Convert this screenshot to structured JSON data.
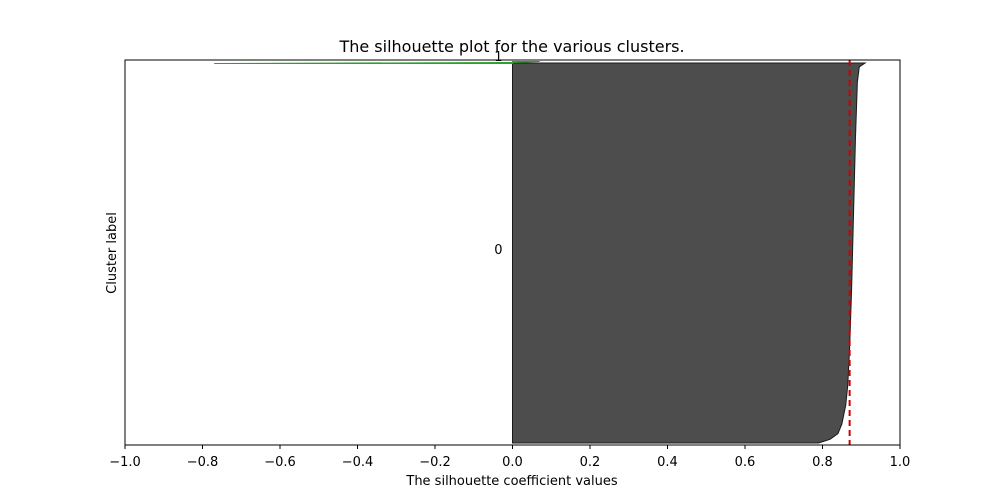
{
  "chart_data": {
    "type": "area",
    "title": "The silhouette plot for the various clusters.",
    "xlabel": "The silhouette coefficient values",
    "ylabel": "Cluster label",
    "xlim": [
      -1.0,
      1.0
    ],
    "xticks": [
      "−1.0",
      "−0.8",
      "−0.6",
      "−0.4",
      "−0.2",
      "0.0",
      "0.2",
      "0.4",
      "0.6",
      "0.8",
      "1.0"
    ],
    "yticks": [],
    "grid": false,
    "average_silhouette_score": 0.87,
    "average_line_color": "#cc0000",
    "clusters": [
      {
        "label": "0",
        "color": "#4d4d4d",
        "edge_color": "#1a1a1a",
        "silhouette_profile": [
          [
            0.0,
            0.91
          ],
          [
            0.01,
            0.895
          ],
          [
            0.05,
            0.89
          ],
          [
            0.2,
            0.885
          ],
          [
            0.4,
            0.88
          ],
          [
            0.6,
            0.875
          ],
          [
            0.75,
            0.87
          ],
          [
            0.85,
            0.865
          ],
          [
            0.9,
            0.86
          ],
          [
            0.95,
            0.85
          ],
          [
            0.975,
            0.84
          ],
          [
            0.99,
            0.82
          ],
          [
            1.0,
            0.79
          ]
        ]
      },
      {
        "label": "1",
        "color": "#2ca02c",
        "silhouette_profile": [
          [
            0.0,
            0.07
          ],
          [
            0.5,
            0.0
          ],
          [
            1.0,
            -0.77
          ]
        ]
      }
    ]
  }
}
